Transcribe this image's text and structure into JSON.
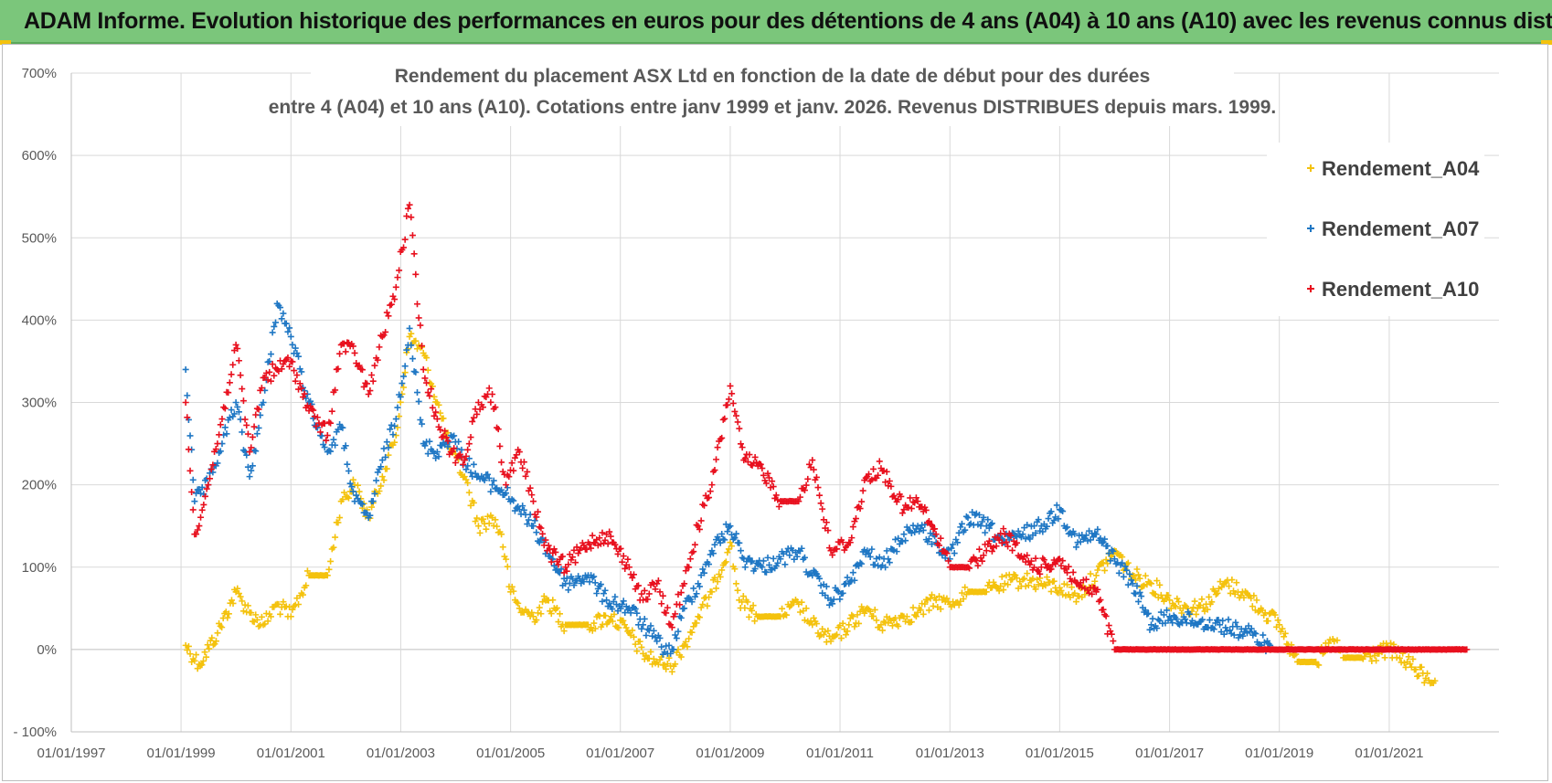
{
  "banner": {
    "title": "ADAM Informe. Evolution historique des performances en euros pour des détentions de 4 ans (A04) à 10 ans (A10) avec les revenus connus distribués"
  },
  "colors": {
    "banner_bg": "#7bc67b",
    "A04": "#f4c20d",
    "A07": "#1f77c4",
    "A10": "#e8101e"
  },
  "chart_data": {
    "type": "scatter",
    "title_line1": "Rendement du placement ASX Ltd en fonction de la date de début pour des durées",
    "title_line2": "entre 4 (A04) et 10 ans (A10). Cotations entre janv 1999 et janv. 2026. Revenus DISTRIBUES depuis mars. 1999.",
    "xlabel": "",
    "ylabel": "",
    "x_range": [
      "1997-01-01",
      "2023-01-01"
    ],
    "y_range": [
      -100,
      700
    ],
    "y_ticks": [
      {
        "value": 700,
        "label": "700%"
      },
      {
        "value": 600,
        "label": "600%"
      },
      {
        "value": 500,
        "label": "500%"
      },
      {
        "value": 400,
        "label": "400%"
      },
      {
        "value": 300,
        "label": "300%"
      },
      {
        "value": 200,
        "label": "200%"
      },
      {
        "value": 100,
        "label": "100%"
      },
      {
        "value": 0,
        "label": "0%"
      },
      {
        "value": -100,
        "label": "- 100%"
      }
    ],
    "x_ticks": [
      {
        "value": "1997-01-01",
        "label": "01/01/1997"
      },
      {
        "value": "1999-01-01",
        "label": "01/01/1999"
      },
      {
        "value": "2001-01-01",
        "label": "01/01/2001"
      },
      {
        "value": "2003-01-01",
        "label": "01/01/2003"
      },
      {
        "value": "2005-01-01",
        "label": "01/01/2005"
      },
      {
        "value": "2007-01-01",
        "label": "01/01/2007"
      },
      {
        "value": "2009-01-01",
        "label": "01/01/2009"
      },
      {
        "value": "2011-01-01",
        "label": "01/01/2011"
      },
      {
        "value": "2013-01-01",
        "label": "01/01/2013"
      },
      {
        "value": "2015-01-01",
        "label": "01/01/2015"
      },
      {
        "value": "2017-01-01",
        "label": "01/01/2017"
      },
      {
        "value": "2019-01-01",
        "label": "01/01/2019"
      },
      {
        "value": "2021-01-01",
        "label": "01/01/2021"
      }
    ],
    "grid": true,
    "legend_position": "top-right",
    "series": [
      {
        "name": "Rendement_A04",
        "color": "#f4c20d",
        "points": [
          [
            "1999-02-01",
            5
          ],
          [
            "1999-05-01",
            -18
          ],
          [
            "1999-09-01",
            20
          ],
          [
            "2000-01-01",
            70
          ],
          [
            "2000-04-01",
            45
          ],
          [
            "2000-07-01",
            30
          ],
          [
            "2000-10-01",
            55
          ],
          [
            "2001-01-01",
            40
          ],
          [
            "2001-05-01",
            90
          ],
          [
            "2001-09-01",
            90
          ],
          [
            "2001-12-01",
            180
          ],
          [
            "2002-03-01",
            200
          ],
          [
            "2002-06-01",
            160
          ],
          [
            "2002-09-01",
            210
          ],
          [
            "2002-12-01",
            260
          ],
          [
            "2003-03-01",
            380
          ],
          [
            "2003-06-01",
            360
          ],
          [
            "2003-09-01",
            300
          ],
          [
            "2003-12-01",
            240
          ],
          [
            "2004-03-01",
            210
          ],
          [
            "2004-06-01",
            150
          ],
          [
            "2004-09-01",
            160
          ],
          [
            "2004-11-01",
            140
          ],
          [
            "2005-01-01",
            70
          ],
          [
            "2005-03-01",
            50
          ],
          [
            "2005-06-01",
            40
          ],
          [
            "2005-09-01",
            60
          ],
          [
            "2006-01-01",
            30
          ],
          [
            "2006-06-01",
            30
          ],
          [
            "2006-11-01",
            40
          ],
          [
            "2007-03-01",
            20
          ],
          [
            "2007-06-01",
            -5
          ],
          [
            "2007-09-01",
            -15
          ],
          [
            "2007-12-01",
            -20
          ],
          [
            "2008-03-01",
            5
          ],
          [
            "2008-06-01",
            40
          ],
          [
            "2008-09-01",
            70
          ],
          [
            "2009-01-01",
            130
          ],
          [
            "2009-03-01",
            60
          ],
          [
            "2009-07-01",
            40
          ],
          [
            "2009-12-01",
            40
          ],
          [
            "2010-04-01",
            55
          ],
          [
            "2010-07-01",
            30
          ],
          [
            "2010-11-01",
            10
          ],
          [
            "2011-03-01",
            30
          ],
          [
            "2011-07-01",
            50
          ],
          [
            "2011-10-01",
            30
          ],
          [
            "2012-03-01",
            40
          ],
          [
            "2012-06-01",
            45
          ],
          [
            "2012-10-01",
            60
          ],
          [
            "2013-01-01",
            55
          ],
          [
            "2013-05-01",
            70
          ],
          [
            "2013-09-01",
            70
          ],
          [
            "2014-01-01",
            80
          ],
          [
            "2014-05-01",
            85
          ],
          [
            "2014-09-01",
            80
          ],
          [
            "2015-01-01",
            75
          ],
          [
            "2015-05-01",
            65
          ],
          [
            "2015-09-01",
            90
          ],
          [
            "2016-01-01",
            120
          ],
          [
            "2016-05-01",
            90
          ],
          [
            "2016-09-01",
            80
          ],
          [
            "2017-01-01",
            60
          ],
          [
            "2017-05-01",
            50
          ],
          [
            "2017-09-01",
            55
          ],
          [
            "2018-01-01",
            80
          ],
          [
            "2018-05-01",
            70
          ],
          [
            "2018-09-01",
            50
          ],
          [
            "2019-01-01",
            30
          ],
          [
            "2019-05-01",
            -15
          ],
          [
            "2019-09-01",
            -15
          ],
          [
            "2020-01-01",
            10
          ],
          [
            "2020-03-01",
            -10
          ],
          [
            "2020-07-01",
            -10
          ],
          [
            "2021-01-01",
            0
          ],
          [
            "2021-05-01",
            -15
          ],
          [
            "2021-09-01",
            -35
          ],
          [
            "2021-11-01",
            -38
          ]
        ]
      },
      {
        "name": "Rendement_A07",
        "color": "#1f77c4",
        "points": [
          [
            "1999-02-01",
            340
          ],
          [
            "1999-04-01",
            180
          ],
          [
            "1999-07-01",
            200
          ],
          [
            "1999-10-01",
            250
          ],
          [
            "2000-01-01",
            300
          ],
          [
            "2000-04-01",
            210
          ],
          [
            "2000-07-01",
            300
          ],
          [
            "2000-10-01",
            420
          ],
          [
            "2001-01-01",
            380
          ],
          [
            "2001-05-01",
            300
          ],
          [
            "2001-09-01",
            240
          ],
          [
            "2001-12-01",
            270
          ],
          [
            "2002-03-01",
            180
          ],
          [
            "2002-06-01",
            160
          ],
          [
            "2002-09-01",
            230
          ],
          [
            "2002-12-01",
            280
          ],
          [
            "2003-03-01",
            390
          ],
          [
            "2003-06-01",
            250
          ],
          [
            "2003-09-01",
            240
          ],
          [
            "2003-12-01",
            260
          ],
          [
            "2004-03-01",
            230
          ],
          [
            "2004-06-01",
            210
          ],
          [
            "2004-09-01",
            200
          ],
          [
            "2004-12-01",
            190
          ],
          [
            "2005-03-01",
            170
          ],
          [
            "2005-06-01",
            150
          ],
          [
            "2005-09-01",
            120
          ],
          [
            "2006-01-01",
            80
          ],
          [
            "2006-06-01",
            90
          ],
          [
            "2006-10-01",
            60
          ],
          [
            "2007-03-01",
            50
          ],
          [
            "2007-06-01",
            30
          ],
          [
            "2007-09-01",
            10
          ],
          [
            "2007-12-01",
            -5
          ],
          [
            "2008-03-01",
            50
          ],
          [
            "2008-06-01",
            80
          ],
          [
            "2008-09-01",
            120
          ],
          [
            "2009-01-01",
            150
          ],
          [
            "2009-04-01",
            110
          ],
          [
            "2009-08-01",
            100
          ],
          [
            "2009-12-01",
            110
          ],
          [
            "2010-04-01",
            120
          ],
          [
            "2010-07-01",
            90
          ],
          [
            "2010-11-01",
            60
          ],
          [
            "2011-03-01",
            80
          ],
          [
            "2011-07-01",
            120
          ],
          [
            "2011-10-01",
            100
          ],
          [
            "2012-03-01",
            140
          ],
          [
            "2012-06-01",
            150
          ],
          [
            "2012-10-01",
            130
          ],
          [
            "2013-01-01",
            110
          ],
          [
            "2013-05-01",
            160
          ],
          [
            "2013-09-01",
            150
          ],
          [
            "2014-01-01",
            130
          ],
          [
            "2014-05-01",
            140
          ],
          [
            "2014-09-01",
            150
          ],
          [
            "2015-01-01",
            170
          ],
          [
            "2015-05-01",
            130
          ],
          [
            "2015-09-01",
            140
          ],
          [
            "2016-01-01",
            110
          ],
          [
            "2016-05-01",
            80
          ],
          [
            "2016-09-01",
            30
          ],
          [
            "2017-01-01",
            40
          ],
          [
            "2017-06-01",
            35
          ],
          [
            "2017-12-01",
            30
          ],
          [
            "2018-06-01",
            20
          ],
          [
            "2018-11-01",
            5
          ]
        ]
      },
      {
        "name": "Rendement_A10",
        "color": "#e8101e",
        "points": [
          [
            "1999-02-01",
            300
          ],
          [
            "1999-04-01",
            140
          ],
          [
            "1999-07-01",
            200
          ],
          [
            "1999-10-01",
            280
          ],
          [
            "2000-01-01",
            370
          ],
          [
            "2000-04-01",
            240
          ],
          [
            "2000-07-01",
            330
          ],
          [
            "2000-10-01",
            340
          ],
          [
            "2001-01-01",
            350
          ],
          [
            "2001-05-01",
            290
          ],
          [
            "2001-09-01",
            260
          ],
          [
            "2001-12-01",
            370
          ],
          [
            "2002-03-01",
            360
          ],
          [
            "2002-06-01",
            310
          ],
          [
            "2002-09-01",
            380
          ],
          [
            "2002-12-01",
            440
          ],
          [
            "2003-03-01",
            540
          ],
          [
            "2003-06-01",
            340
          ],
          [
            "2003-09-01",
            280
          ],
          [
            "2003-12-01",
            240
          ],
          [
            "2004-03-01",
            230
          ],
          [
            "2004-06-01",
            300
          ],
          [
            "2004-09-01",
            310
          ],
          [
            "2004-12-01",
            200
          ],
          [
            "2005-03-01",
            240
          ],
          [
            "2005-06-01",
            180
          ],
          [
            "2005-09-01",
            120
          ],
          [
            "2006-01-01",
            100
          ],
          [
            "2006-06-01",
            130
          ],
          [
            "2006-10-01",
            140
          ],
          [
            "2007-03-01",
            100
          ],
          [
            "2007-06-01",
            60
          ],
          [
            "2007-09-01",
            80
          ],
          [
            "2007-12-01",
            30
          ],
          [
            "2008-03-01",
            80
          ],
          [
            "2008-06-01",
            150
          ],
          [
            "2008-09-01",
            200
          ],
          [
            "2009-01-01",
            320
          ],
          [
            "2009-04-01",
            230
          ],
          [
            "2009-08-01",
            220
          ],
          [
            "2009-12-01",
            180
          ],
          [
            "2010-04-01",
            180
          ],
          [
            "2010-07-01",
            230
          ],
          [
            "2010-11-01",
            120
          ],
          [
            "2011-03-01",
            130
          ],
          [
            "2011-07-01",
            210
          ],
          [
            "2011-10-01",
            220
          ],
          [
            "2012-03-01",
            170
          ],
          [
            "2012-06-01",
            180
          ],
          [
            "2012-10-01",
            140
          ],
          [
            "2013-01-01",
            100
          ],
          [
            "2013-05-01",
            100
          ],
          [
            "2013-09-01",
            120
          ],
          [
            "2014-01-01",
            140
          ],
          [
            "2014-05-01",
            110
          ],
          [
            "2014-09-01",
            100
          ],
          [
            "2015-01-01",
            110
          ],
          [
            "2015-05-01",
            80
          ],
          [
            "2015-09-01",
            70
          ],
          [
            "2016-01-01",
            0
          ],
          [
            "2017-01-01",
            0
          ],
          [
            "2018-01-01",
            0
          ],
          [
            "2019-01-01",
            0
          ],
          [
            "2020-01-01",
            0
          ],
          [
            "2021-01-01",
            0
          ],
          [
            "2022-06-01",
            0
          ]
        ]
      }
    ]
  }
}
